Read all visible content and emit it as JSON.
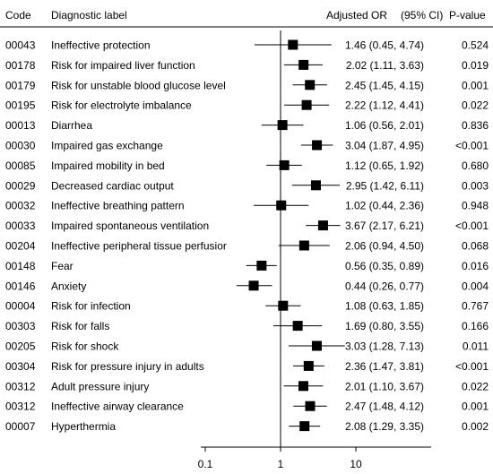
{
  "chart_data": {
    "type": "forest",
    "x_scale": "log",
    "xlim": [
      0.1,
      10
    ],
    "reference_line": 1,
    "x_ticks": [
      "0.1",
      "1",
      "10"
    ],
    "headers": {
      "code": "Code",
      "label": "Diagnostic label",
      "or": "Adjusted OR",
      "ci": "(95% CI)",
      "p": "P-value"
    },
    "rows": [
      {
        "code": "00043",
        "label": "Ineffective protection",
        "or": 1.46,
        "lo": 0.45,
        "hi": 4.74,
        "or_text": "1.46 (0.45, 4.74)",
        "p": "0.524"
      },
      {
        "code": "00178",
        "label": "Risk for impaired liver function",
        "or": 2.02,
        "lo": 1.11,
        "hi": 3.63,
        "or_text": "2.02 (1.11, 3.63)",
        "p": "0.019"
      },
      {
        "code": "00179",
        "label": "Risk for unstable blood glucose level",
        "or": 2.45,
        "lo": 1.45,
        "hi": 4.15,
        "or_text": "2.45 (1.45, 4.15)",
        "p": "0.001"
      },
      {
        "code": "00195",
        "label": "Risk for electrolyte imbalance",
        "or": 2.22,
        "lo": 1.12,
        "hi": 4.41,
        "or_text": "2.22 (1.12, 4.41)",
        "p": "0.022"
      },
      {
        "code": "00013",
        "label": "Diarrhea",
        "or": 1.06,
        "lo": 0.56,
        "hi": 2.01,
        "or_text": "1.06 (0.56, 2.01)",
        "p": "0.836"
      },
      {
        "code": "00030",
        "label": "Impaired gas exchange",
        "or": 3.04,
        "lo": 1.87,
        "hi": 4.95,
        "or_text": "3.04 (1.87, 4.95)",
        "p": "<0.001"
      },
      {
        "code": "00085",
        "label": "Impaired mobility in bed",
        "or": 1.12,
        "lo": 0.65,
        "hi": 1.92,
        "or_text": "1.12 (0.65, 1.92)",
        "p": "0.680"
      },
      {
        "code": "00029",
        "label": "Decreased cardiac output",
        "or": 2.95,
        "lo": 1.42,
        "hi": 6.11,
        "or_text": "2.95 (1.42, 6.11)",
        "p": "0.003"
      },
      {
        "code": "00032",
        "label": "Ineffective breathing pattern",
        "or": 1.02,
        "lo": 0.44,
        "hi": 2.36,
        "or_text": "1.02 (0.44, 2.36)",
        "p": "0.948"
      },
      {
        "code": "00033",
        "label": "Impaired spontaneous ventilation",
        "or": 3.67,
        "lo": 2.17,
        "hi": 6.21,
        "or_text": "3.67 (2.17, 6.21)",
        "p": "<0.001"
      },
      {
        "code": "00204",
        "label": "Ineffective peripheral tissue perfusior",
        "or": 2.06,
        "lo": 0.94,
        "hi": 4.5,
        "or_text": "2.06 (0.94, 4.50)",
        "p": "0.068"
      },
      {
        "code": "00148",
        "label": "Fear",
        "or": 0.56,
        "lo": 0.35,
        "hi": 0.89,
        "or_text": "0.56 (0.35, 0.89)",
        "p": "0.016"
      },
      {
        "code": "00146",
        "label": "Anxiety",
        "or": 0.44,
        "lo": 0.26,
        "hi": 0.77,
        "or_text": "0.44 (0.26, 0.77)",
        "p": "0.004"
      },
      {
        "code": "00004",
        "label": "Risk for infection",
        "or": 1.08,
        "lo": 0.63,
        "hi": 1.85,
        "or_text": "1.08 (0.63, 1.85)",
        "p": "0.767"
      },
      {
        "code": "00303",
        "label": "Risk for falls",
        "or": 1.69,
        "lo": 0.8,
        "hi": 3.55,
        "or_text": "1.69 (0.80, 3.55)",
        "p": "0.166"
      },
      {
        "code": "00205",
        "label": "Risk for shock",
        "or": 3.03,
        "lo": 1.28,
        "hi": 7.13,
        "or_text": "3.03 (1.28, 7.13)",
        "p": "0.011"
      },
      {
        "code": "00304",
        "label": "Risk for pressure injury in adults",
        "or": 2.36,
        "lo": 1.47,
        "hi": 3.81,
        "or_text": "2.36 (1.47, 3.81)",
        "p": "<0.001"
      },
      {
        "code": "00312",
        "label": "Adult pressure injury",
        "or": 2.01,
        "lo": 1.1,
        "hi": 3.67,
        "or_text": "2.01 (1.10, 3.67)",
        "p": "0.022"
      },
      {
        "code": "00312",
        "label": "Ineffective airway clearance",
        "or": 2.47,
        "lo": 1.48,
        "hi": 4.12,
        "or_text": "2.47 (1.48, 4.12)",
        "p": "0.001"
      },
      {
        "code": "00007",
        "label": "Hyperthermia",
        "or": 2.08,
        "lo": 1.29,
        "hi": 3.35,
        "or_text": "2.08 (1.29, 3.35)",
        "p": "0.002"
      }
    ]
  }
}
